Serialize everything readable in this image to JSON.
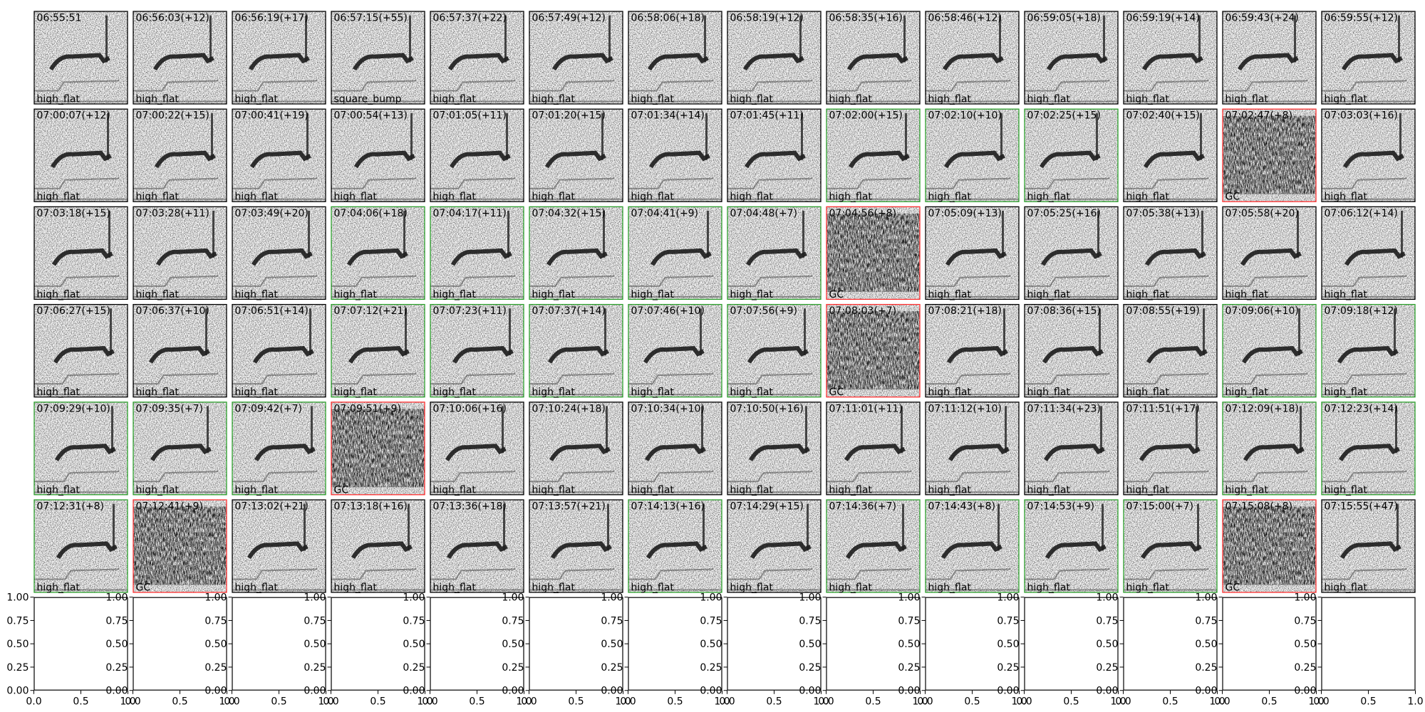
{
  "panels": [
    {
      "time": "06:55:51",
      "label": "high_flat",
      "border": "black"
    },
    {
      "time": "06:56:03(+12)",
      "label": "high_flat",
      "border": "black"
    },
    {
      "time": "06:56:19(+17)",
      "label": "high_flat",
      "border": "black"
    },
    {
      "time": "06:57:15(+55)",
      "label": "square_bump",
      "border": "black"
    },
    {
      "time": "06:57:37(+22)",
      "label": "high_flat",
      "border": "black"
    },
    {
      "time": "06:57:49(+12)",
      "label": "high_flat",
      "border": "black"
    },
    {
      "time": "06:58:06(+18)",
      "label": "high_flat",
      "border": "black"
    },
    {
      "time": "06:58:19(+12)",
      "label": "high_flat",
      "border": "black"
    },
    {
      "time": "06:58:35(+16)",
      "label": "high_flat",
      "border": "black"
    },
    {
      "time": "06:58:46(+12)",
      "label": "high_flat",
      "border": "black"
    },
    {
      "time": "06:59:05(+18)",
      "label": "high_flat",
      "border": "black"
    },
    {
      "time": "06:59:19(+14)",
      "label": "high_flat",
      "border": "black"
    },
    {
      "time": "06:59:43(+24)",
      "label": "high_flat",
      "border": "black"
    },
    {
      "time": "06:59:55(+12)",
      "label": "high_flat",
      "border": "black"
    },
    {
      "time": "07:00:07(+12)",
      "label": "high_flat",
      "border": "black"
    },
    {
      "time": "07:00:22(+15)",
      "label": "high_flat",
      "border": "black"
    },
    {
      "time": "07:00:41(+19)",
      "label": "high_flat",
      "border": "black"
    },
    {
      "time": "07:00:54(+13)",
      "label": "high_flat",
      "border": "black"
    },
    {
      "time": "07:01:05(+11)",
      "label": "high_flat",
      "border": "black"
    },
    {
      "time": "07:01:20(+15)",
      "label": "high_flat",
      "border": "black"
    },
    {
      "time": "07:01:34(+14)",
      "label": "high_flat",
      "border": "black"
    },
    {
      "time": "07:01:45(+11)",
      "label": "high_flat",
      "border": "black"
    },
    {
      "time": "07:02:00(+15)",
      "label": "high_flat",
      "border": "green"
    },
    {
      "time": "07:02:10(+10)",
      "label": "high_flat",
      "border": "green"
    },
    {
      "time": "07:02:25(+15)",
      "label": "high_flat",
      "border": "green"
    },
    {
      "time": "07:02:40(+15)",
      "label": "high_flat",
      "border": "black"
    },
    {
      "time": "07:02:47(+8)",
      "label": "GC",
      "border": "red"
    },
    {
      "time": "07:03:03(+16)",
      "label": "high_flat",
      "border": "black"
    },
    {
      "time": "07:03:18(+15)",
      "label": "high_flat",
      "border": "black"
    },
    {
      "time": "07:03:28(+11)",
      "label": "high_flat",
      "border": "black"
    },
    {
      "time": "07:03:49(+20)",
      "label": "high_flat",
      "border": "black"
    },
    {
      "time": "07:04:06(+18)",
      "label": "high_flat",
      "border": "green"
    },
    {
      "time": "07:04:17(+11)",
      "label": "high_flat",
      "border": "green"
    },
    {
      "time": "07:04:32(+15)",
      "label": "high_flat",
      "border": "green"
    },
    {
      "time": "07:04:41(+9)",
      "label": "high_flat",
      "border": "green"
    },
    {
      "time": "07:04:48(+7)",
      "label": "high_flat",
      "border": "green"
    },
    {
      "time": "07:04:56(+8)",
      "label": "GC",
      "border": "red"
    },
    {
      "time": "07:05:09(+13)",
      "label": "high_flat",
      "border": "black"
    },
    {
      "time": "07:05:25(+16)",
      "label": "high_flat",
      "border": "black"
    },
    {
      "time": "07:05:38(+13)",
      "label": "high_flat",
      "border": "black"
    },
    {
      "time": "07:05:58(+20)",
      "label": "high_flat",
      "border": "black"
    },
    {
      "time": "07:06:12(+14)",
      "label": "high_flat",
      "border": "black"
    },
    {
      "time": "07:06:27(+15)",
      "label": "high_flat",
      "border": "black"
    },
    {
      "time": "07:06:37(+10)",
      "label": "high_flat",
      "border": "black"
    },
    {
      "time": "07:06:51(+14)",
      "label": "high_flat",
      "border": "black"
    },
    {
      "time": "07:07:12(+21)",
      "label": "high_flat",
      "border": "green"
    },
    {
      "time": "07:07:23(+11)",
      "label": "high_flat",
      "border": "green"
    },
    {
      "time": "07:07:37(+14)",
      "label": "high_flat",
      "border": "green"
    },
    {
      "time": "07:07:46(+10)",
      "label": "high_flat",
      "border": "green"
    },
    {
      "time": "07:07:56(+9)",
      "label": "high_flat",
      "border": "green"
    },
    {
      "time": "07:08:03(+7)",
      "label": "GC",
      "border": "red"
    },
    {
      "time": "07:08:21(+18)",
      "label": "high_flat",
      "border": "black"
    },
    {
      "time": "07:08:36(+15)",
      "label": "high_flat",
      "border": "black"
    },
    {
      "time": "07:08:55(+19)",
      "label": "high_flat",
      "border": "black"
    },
    {
      "time": "07:09:06(+10)",
      "label": "high_flat",
      "border": "green"
    },
    {
      "time": "07:09:18(+12)",
      "label": "high_flat",
      "border": "green"
    },
    {
      "time": "07:09:29(+10)",
      "label": "high_flat",
      "border": "green"
    },
    {
      "time": "07:09:35(+7)",
      "label": "high_flat",
      "border": "green"
    },
    {
      "time": "07:09:42(+7)",
      "label": "high_flat",
      "border": "green"
    },
    {
      "time": "07:09:51(+9)",
      "label": "GC",
      "border": "red"
    },
    {
      "time": "07:10:06(+16)",
      "label": "high_flat",
      "border": "black"
    },
    {
      "time": "07:10:24(+18)",
      "label": "high_flat",
      "border": "black"
    },
    {
      "time": "07:10:34(+10)",
      "label": "high_flat",
      "border": "black"
    },
    {
      "time": "07:10:50(+16)",
      "label": "high_flat",
      "border": "black"
    },
    {
      "time": "07:11:01(+11)",
      "label": "high_flat",
      "border": "black"
    },
    {
      "time": "07:11:12(+10)",
      "label": "high_flat",
      "border": "black"
    },
    {
      "time": "07:11:34(+23)",
      "label": "high_flat",
      "border": "black"
    },
    {
      "time": "07:11:51(+17)",
      "label": "high_flat",
      "border": "black"
    },
    {
      "time": "07:12:09(+18)",
      "label": "high_flat",
      "border": "green"
    },
    {
      "time": "07:12:23(+14)",
      "label": "high_flat",
      "border": "green"
    },
    {
      "time": "07:12:31(+8)",
      "label": "high_flat",
      "border": "green"
    },
    {
      "time": "07:12:41(+9)",
      "label": "GC",
      "border": "red"
    },
    {
      "time": "07:13:02(+21)",
      "label": "high_flat",
      "border": "black"
    },
    {
      "time": "07:13:18(+16)",
      "label": "high_flat",
      "border": "black"
    },
    {
      "time": "07:13:36(+18)",
      "label": "high_flat",
      "border": "black"
    },
    {
      "time": "07:13:57(+21)",
      "label": "high_flat",
      "border": "black"
    },
    {
      "time": "07:14:13(+16)",
      "label": "high_flat",
      "border": "green"
    },
    {
      "time": "07:14:29(+15)",
      "label": "high_flat",
      "border": "black"
    },
    {
      "time": "07:14:36(+7)",
      "label": "high_flat",
      "border": "green"
    },
    {
      "time": "07:14:43(+8)",
      "label": "high_flat",
      "border": "green"
    },
    {
      "time": "07:14:53(+9)",
      "label": "high_flat",
      "border": "green"
    },
    {
      "time": "07:15:00(+7)",
      "label": "high_flat",
      "border": "green"
    },
    {
      "time": "07:15:08(+8)",
      "label": "GC",
      "border": "red"
    },
    {
      "time": "07:15:55(+47)",
      "label": "high_flat",
      "border": "black"
    }
  ],
  "empty_axes": {
    "count": 14,
    "xlim": [
      0,
      1
    ],
    "ylim": [
      0,
      1
    ],
    "xticks": [
      {
        "value": 0,
        "label": "0.0"
      },
      {
        "value": 0.5,
        "label": "0.5"
      },
      {
        "value": 1,
        "label": "1.0"
      }
    ],
    "yticks": [
      {
        "value": 0,
        "label": "0.00"
      },
      {
        "value": 0.25,
        "label": "0.25"
      },
      {
        "value": 0.5,
        "label": "0.50"
      },
      {
        "value": 0.75,
        "label": "0.75"
      },
      {
        "value": 1,
        "label": "1.00"
      }
    ]
  }
}
